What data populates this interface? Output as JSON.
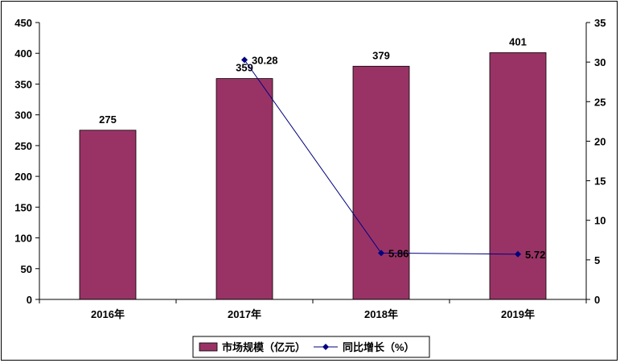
{
  "chart_data": {
    "type": "bar",
    "categories": [
      "2016年",
      "2017年",
      "2018年",
      "2019年"
    ],
    "series": [
      {
        "name": "市场规模（亿元）",
        "kind": "bar",
        "axis": "left",
        "color": "#993366",
        "values": [
          275,
          359,
          379,
          401
        ],
        "labels": [
          "275",
          "359",
          "379",
          "401"
        ]
      },
      {
        "name": "同比增长（%）",
        "kind": "line",
        "axis": "right",
        "color": "#000080",
        "marker": "diamond",
        "values": [
          null,
          30.28,
          5.86,
          5.72
        ],
        "labels": [
          "",
          "30.28",
          "5.86",
          "5.72"
        ]
      }
    ],
    "y_left": {
      "ylim": [
        0,
        450
      ],
      "ticks": [
        "0",
        "50",
        "100",
        "150",
        "200",
        "250",
        "300",
        "350",
        "400",
        "450"
      ]
    },
    "y_right": {
      "ylim": [
        0,
        35
      ],
      "ticks": [
        "0",
        "5",
        "10",
        "15",
        "20",
        "25",
        "30",
        "35"
      ]
    },
    "title": "",
    "xlabel": "",
    "ylabel": "",
    "grid": false,
    "legend_position": "bottom-center"
  }
}
